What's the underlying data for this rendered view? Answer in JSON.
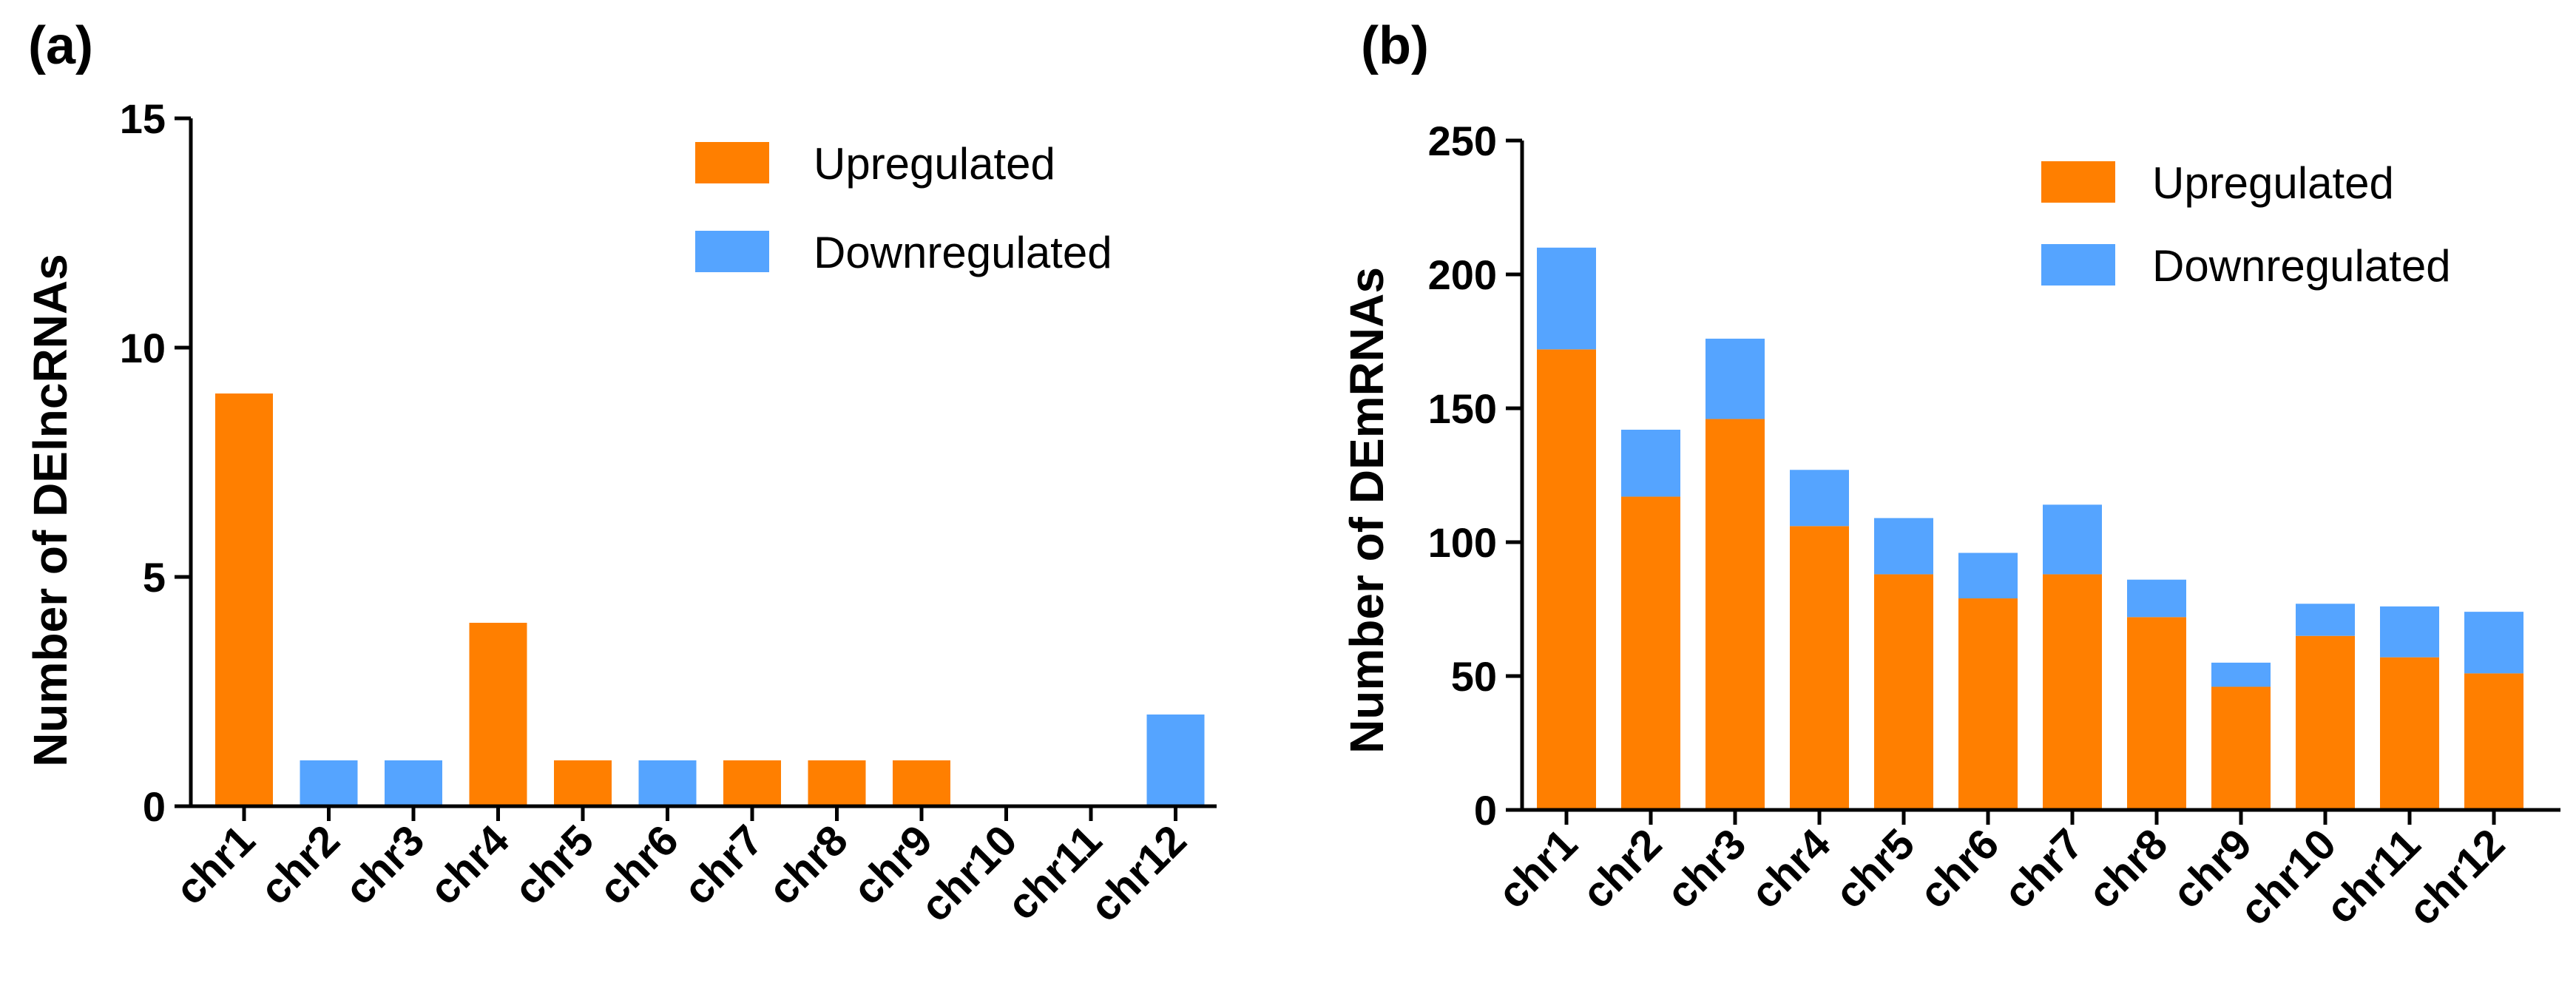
{
  "colors": {
    "up": "#FF7F00",
    "down": "#55A4FF"
  },
  "chart_data": [
    {
      "type": "bar",
      "panel_label": "(a)",
      "ylabel": "Number of DElncRNAs",
      "xlabel": "",
      "ylim": [
        0,
        15
      ],
      "ticks": [
        0,
        5,
        10,
        15
      ],
      "stacked": false,
      "legend": "top-right",
      "categories": [
        "chr1",
        "chr2",
        "chr3",
        "chr4",
        "chr5",
        "chr6",
        "chr7",
        "chr8",
        "chr9",
        "chr10",
        "chr11",
        "chr12"
      ],
      "series": [
        {
          "name": "Upregulated",
          "color_key": "up",
          "values": [
            9,
            0,
            0,
            4,
            1,
            0,
            1,
            1,
            1,
            0,
            0,
            0
          ]
        },
        {
          "name": "Downregulated",
          "color_key": "down",
          "values": [
            0,
            1,
            1,
            0,
            0,
            1,
            0,
            0,
            0,
            0,
            0,
            2
          ]
        }
      ]
    },
    {
      "type": "bar",
      "panel_label": "(b)",
      "ylabel": "Number of DEmRNAs",
      "xlabel": "",
      "ylim": [
        0,
        250
      ],
      "ticks": [
        0,
        50,
        100,
        150,
        200,
        250
      ],
      "stacked": true,
      "legend": "top-right",
      "categories": [
        "chr1",
        "chr2",
        "chr3",
        "chr4",
        "chr5",
        "chr6",
        "chr7",
        "chr8",
        "chr9",
        "chr10",
        "chr11",
        "chr12"
      ],
      "series": [
        {
          "name": "Upregulated",
          "color_key": "up",
          "values": [
            172,
            117,
            146,
            106,
            88,
            79,
            88,
            72,
            46,
            65,
            57,
            51
          ]
        },
        {
          "name": "Downregulated",
          "color_key": "down",
          "values": [
            38,
            25,
            30,
            21,
            21,
            17,
            26,
            14,
            9,
            12,
            19,
            23
          ]
        }
      ]
    }
  ]
}
